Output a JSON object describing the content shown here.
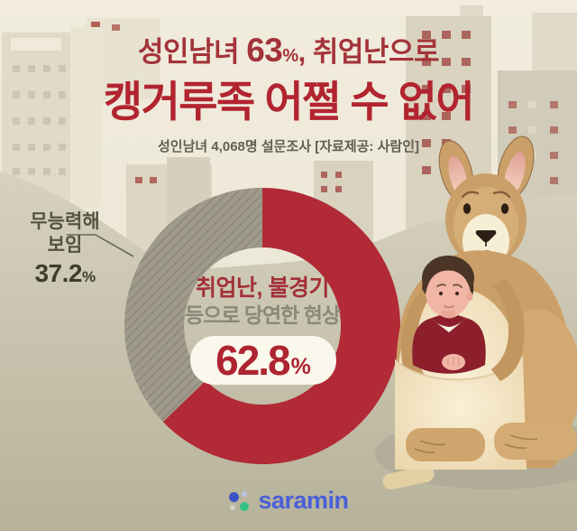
{
  "title": {
    "line1_prefix": "성인남녀 ",
    "line1_number": "63",
    "line1_percent": "%",
    "line1_suffix": ", 취업난으로",
    "line2": "캥거루족 어쩔 수 없어"
  },
  "subtitle": "성인남녀 4,068명 설문조사 [자료제공: 사람인]",
  "chart_data": {
    "type": "pie",
    "variant": "donut",
    "unit": "%",
    "start_angle_deg": 0,
    "direction": "clockwise",
    "slices": [
      {
        "label": "취업난, 불경기 등으로 당연한 현상",
        "value": 62.8,
        "color": "#b12a35"
      },
      {
        "label": "무능력해 보임",
        "value": 37.2,
        "color": "#9f9a8b",
        "pattern": "diagonal-stripes"
      }
    ],
    "center_text": {
      "line1": "취업난, 불경기",
      "line2": "등으로 당연한 현상",
      "value": "62.8",
      "percent_sign": "%"
    },
    "callout": {
      "label_line1": "무능력해",
      "label_line2": "보임",
      "value": "37.2",
      "percent_sign": "%"
    }
  },
  "illustration": {
    "name": "kangaroo-with-adult-in-pouch",
    "background": "city-buildings-and-hill"
  },
  "logo": {
    "text": "saramin",
    "text_color": "#4a5fd8",
    "dot_colors": [
      "#3b55c6",
      "#bcc6e2",
      "#d7d4c8",
      "#35c183"
    ]
  },
  "colors": {
    "background_top": "#f1ecdd",
    "ground": "#c3bea7",
    "accent_red": "#b22430",
    "slice_red": "#b12a35",
    "slice_gray": "#9f9a8b"
  }
}
